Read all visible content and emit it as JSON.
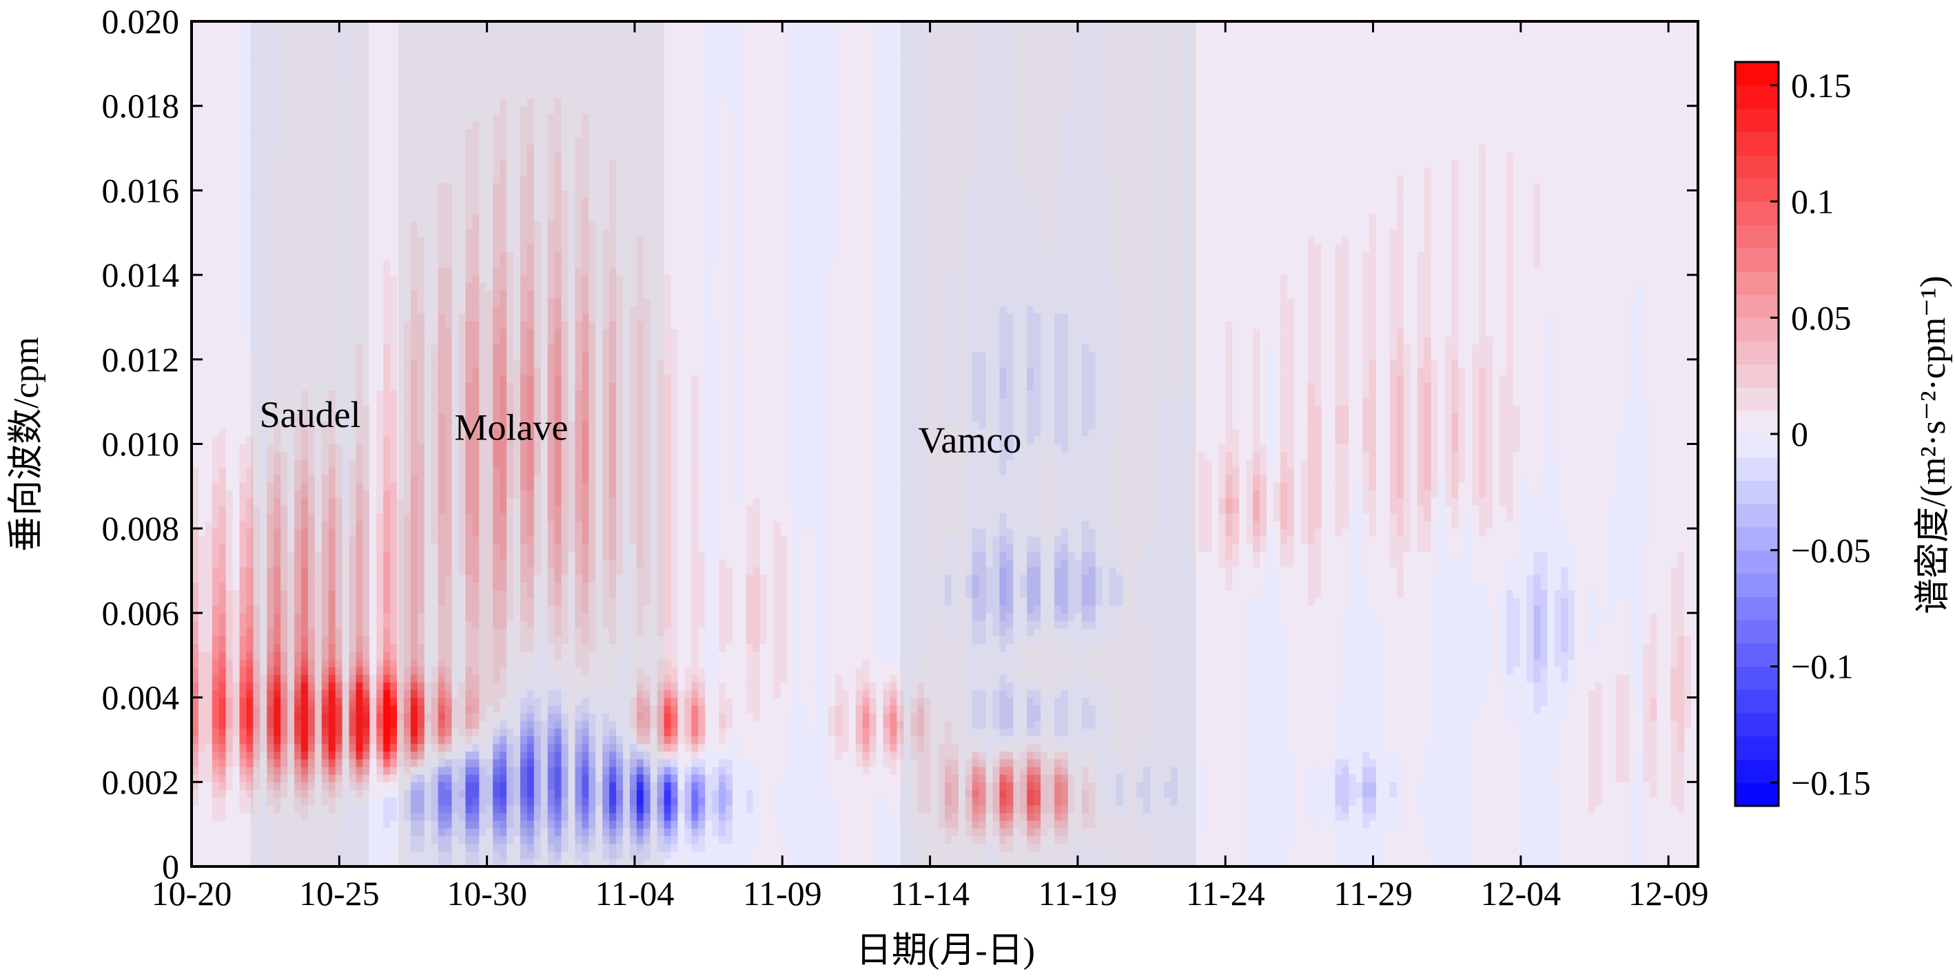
{
  "chart_data": {
    "type": "heatmap",
    "title": "",
    "xlabel": "日期(月-日)",
    "ylabel": "垂向波数/cpm",
    "x_tick_labels": [
      "10-20",
      "10-25",
      "10-30",
      "11-04",
      "11-09",
      "11-14",
      "11-19",
      "11-24",
      "11-29",
      "12-04",
      "12-09"
    ],
    "x_tick_days": [
      0,
      5,
      10,
      15,
      20,
      25,
      30,
      35,
      40,
      45,
      50
    ],
    "x_range_days": [
      0,
      51
    ],
    "y_tick_labels": [
      "0",
      "0.002",
      "0.004",
      "0.006",
      "0.008",
      "0.010",
      "0.012",
      "0.014",
      "0.016",
      "0.018",
      "0.020"
    ],
    "y_tick_values": [
      0,
      0.002,
      0.004,
      0.006,
      0.008,
      0.01,
      0.012,
      0.014,
      0.016,
      0.018,
      0.02
    ],
    "ylim": [
      0,
      0.02
    ],
    "colorbar": {
      "label": "谱密度/(m²·s⁻²·cpm⁻¹)",
      "range": [
        -0.16,
        0.16
      ],
      "tick_labels": [
        "0.15",
        "0.1",
        "0.05",
        "0",
        "−0.05",
        "−0.1",
        "−0.15"
      ],
      "tick_values": [
        0.15,
        0.1,
        0.05,
        0,
        -0.05,
        -0.1,
        -0.15
      ],
      "levels": 32
    },
    "typhoons": [
      {
        "name": "Saudel",
        "start_day": 2.0,
        "end_day": 6.0,
        "label_day": 2.3,
        "label_y": 0.0104
      },
      {
        "name": "",
        "start_day": 7.0,
        "end_day": 16.0
      },
      {
        "name": "Molave",
        "label_day": 8.9,
        "label_y": 0.0101
      },
      {
        "name": "Vamco",
        "start_day": 24.0,
        "end_day": 34.0,
        "label_day": 24.6,
        "label_y": 0.0098
      }
    ],
    "blobs": [
      {
        "day": 5.8,
        "y": 0.0034,
        "amp": 0.14,
        "sx": 1.8,
        "sy": 0.0007
      },
      {
        "day": 3.5,
        "y": 0.0034,
        "amp": 0.09,
        "sx": 3.0,
        "sy": 0.0009
      },
      {
        "day": 1.5,
        "y": 0.0045,
        "amp": 0.05,
        "sx": 1.8,
        "sy": 0.0015
      },
      {
        "day": 4.5,
        "y": 0.006,
        "amp": 0.045,
        "sx": 3.0,
        "sy": 0.0022
      },
      {
        "day": 3.0,
        "y": 0.008,
        "amp": 0.025,
        "sx": 2.0,
        "sy": 0.0015
      },
      {
        "day": 11.5,
        "y": 0.009,
        "amp": 0.06,
        "sx": 3.0,
        "sy": 0.0025
      },
      {
        "day": 11.0,
        "y": 0.0125,
        "amp": 0.035,
        "sx": 3.0,
        "sy": 0.002
      },
      {
        "day": 11.5,
        "y": 0.0165,
        "amp": 0.02,
        "sx": 2.0,
        "sy": 0.0015
      },
      {
        "day": 8.5,
        "y": 0.0034,
        "amp": 0.06,
        "sx": 1.5,
        "sy": 0.0007
      },
      {
        "day": 11.5,
        "y": 0.0022,
        "amp": -0.11,
        "sx": 2.5,
        "sy": 0.0011
      },
      {
        "day": 9.0,
        "y": 0.0017,
        "amp": -0.06,
        "sx": 1.5,
        "sy": 0.0006
      },
      {
        "day": 15.8,
        "y": 0.0016,
        "amp": -0.12,
        "sx": 1.5,
        "sy": 0.0006
      },
      {
        "day": 16.2,
        "y": 0.0034,
        "amp": 0.12,
        "sx": 1.0,
        "sy": 0.0006
      },
      {
        "day": 23.5,
        "y": 0.0034,
        "amp": 0.075,
        "sx": 1.0,
        "sy": 0.0006
      },
      {
        "day": 28.0,
        "y": 0.0017,
        "amp": 0.13,
        "sx": 1.6,
        "sy": 0.0006
      },
      {
        "day": 28.5,
        "y": 0.0066,
        "amp": -0.05,
        "sx": 2.0,
        "sy": 0.0008
      },
      {
        "day": 28.3,
        "y": 0.0036,
        "amp": -0.035,
        "sx": 1.3,
        "sy": 0.0005
      },
      {
        "day": 28.5,
        "y": 0.0115,
        "amp": -0.025,
        "sx": 1.5,
        "sy": 0.0015
      },
      {
        "day": 30.0,
        "y": 0.005,
        "amp": 0.02,
        "sx": 1.0,
        "sy": 0.0005
      },
      {
        "day": 36.0,
        "y": 0.0085,
        "amp": 0.04,
        "sx": 1.2,
        "sy": 0.0008
      },
      {
        "day": 38.0,
        "y": 0.011,
        "amp": 0.015,
        "sx": 3.0,
        "sy": 0.003
      },
      {
        "day": 42.0,
        "y": 0.01,
        "amp": 0.03,
        "sx": 2.0,
        "sy": 0.0015
      },
      {
        "day": 46.0,
        "y": 0.0055,
        "amp": -0.035,
        "sx": 1.5,
        "sy": 0.0012
      },
      {
        "day": 39.5,
        "y": 0.0018,
        "amp": -0.035,
        "sx": 1.0,
        "sy": 0.0005
      },
      {
        "day": 31.5,
        "y": 0.0018,
        "amp": -0.03,
        "sx": 1.2,
        "sy": 0.0005
      },
      {
        "day": 19.0,
        "y": 0.006,
        "amp": 0.02,
        "sx": 2.0,
        "sy": 0.0015
      },
      {
        "day": 49.0,
        "y": 0.004,
        "amp": 0.025,
        "sx": 2.0,
        "sy": 0.002
      },
      {
        "day": 44.0,
        "y": 0.015,
        "amp": 0.012,
        "sx": 4.0,
        "sy": 0.003
      }
    ]
  }
}
